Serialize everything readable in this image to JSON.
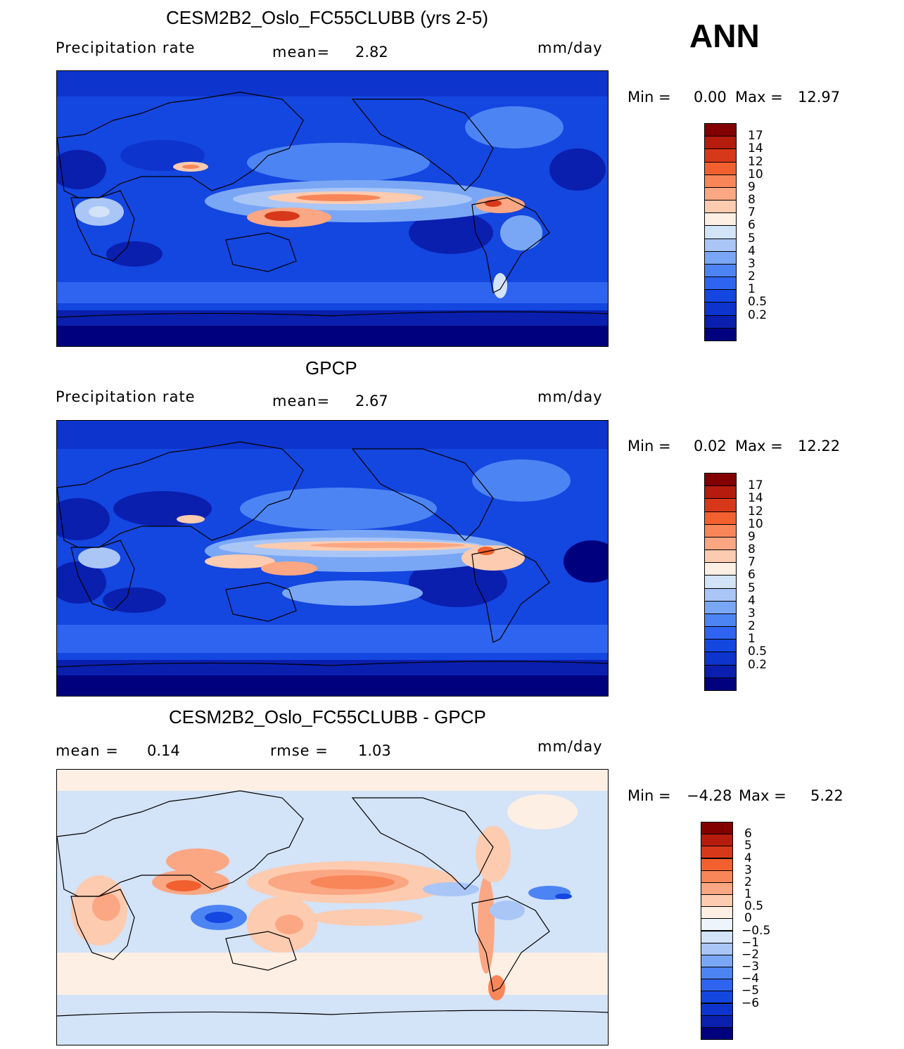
{
  "season": "ANN",
  "model_colors": [
    "#00007f",
    "#0a1fae",
    "#0d34cc",
    "#1446e0",
    "#2e64ef",
    "#4d84f3",
    "#7aa7f5",
    "#a9c6f7",
    "#d3e3f8",
    "#fdefe4",
    "#fdcbb0",
    "#fba783",
    "#f88659",
    "#f2602f",
    "#d8381a",
    "#b51c0d",
    "#830000"
  ],
  "model_levels": [
    "17",
    "14",
    "12",
    "10",
    "9",
    "8",
    "7",
    "6",
    "5",
    "4",
    "3",
    "2",
    "1",
    "0.5",
    "0.2"
  ],
  "diff_colors": [
    "#00007f",
    "#0a1fae",
    "#0d34cc",
    "#1446e0",
    "#2e64ef",
    "#4d84f3",
    "#7aa7f5",
    "#a9c6f7",
    "#d3e3f8",
    "#eef4fb",
    "#fdefe4",
    "#fdcbb0",
    "#fba783",
    "#f88659",
    "#f2602f",
    "#d8381a",
    "#b51c0d",
    "#830000"
  ],
  "diff_levels": [
    "6",
    "5",
    "4",
    "3",
    "2",
    "1",
    "0.5",
    "0",
    "−0.5",
    "−1",
    "−2",
    "−3",
    "−4",
    "−5",
    "−6"
  ],
  "panels": [
    {
      "title": "CESM2B2_Oslo_FC55CLUBB (yrs 2-5)",
      "left_label": "Precipitation rate",
      "mid_label": "mean=",
      "mid_value": "2.82",
      "units": "mm/day",
      "min_label": "Min =",
      "min_value": "0.00",
      "max_label": "Max =",
      "max_value": "12.97"
    },
    {
      "title": "GPCP",
      "left_label": "Precipitation rate",
      "mid_label": "mean=",
      "mid_value": "2.67",
      "units": "mm/day",
      "min_label": "Min =",
      "min_value": "0.02",
      "max_label": "Max =",
      "max_value": "12.22"
    },
    {
      "title": "CESM2B2_Oslo_FC55CLUBB - GPCP",
      "left_label": "mean =",
      "left_value": "0.14",
      "mid_label": "rmse =",
      "mid_value": "1.03",
      "units": "mm/day",
      "min_label": "Min =",
      "min_value": "−4.28",
      "max_label": "Max =",
      "max_value": "5.22"
    }
  ]
}
